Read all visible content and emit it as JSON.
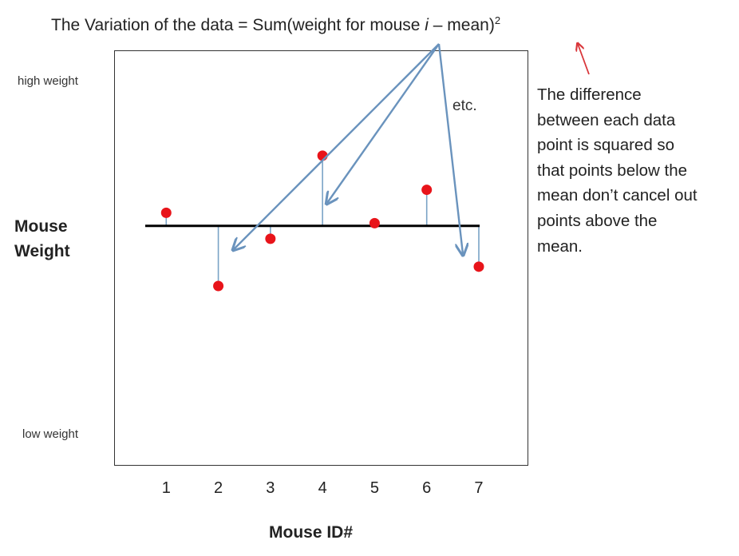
{
  "title": {
    "prefix": "The Variation of the data = Sum(weight for mouse ",
    "italic": "i",
    "suffix": " – mean)",
    "superscript": "2"
  },
  "annotation": {
    "etc": "etc.",
    "note_lines": [
      "The difference",
      "between each data",
      "point is squared so",
      "that points below the",
      "mean don’t cancel out",
      "points above the",
      "mean."
    ]
  },
  "colors": {
    "points": "#e8141a",
    "mean_line": "#000000",
    "residual": "#7aa3c6",
    "arrows": "#6a93bd",
    "note_arrow": "#d9363a"
  },
  "chart_data": {
    "type": "scatter",
    "x_label": "Mouse ID#",
    "y_label": "Mouse Weight",
    "y_axis_labels": {
      "high": "high weight",
      "low": "low weight"
    },
    "x_ticks": [
      "1",
      "2",
      "3",
      "4",
      "5",
      "6",
      "7"
    ],
    "x": [
      1,
      2,
      3,
      4,
      5,
      6,
      7
    ],
    "y": [
      0.53,
      -2.43,
      -0.52,
      2.84,
      0.11,
      1.46,
      -1.65
    ],
    "mean": 0,
    "ylim": [
      -9.7,
      7.1
    ],
    "xlim": [
      0,
      7.95
    ],
    "grid": false,
    "legend": "none"
  }
}
